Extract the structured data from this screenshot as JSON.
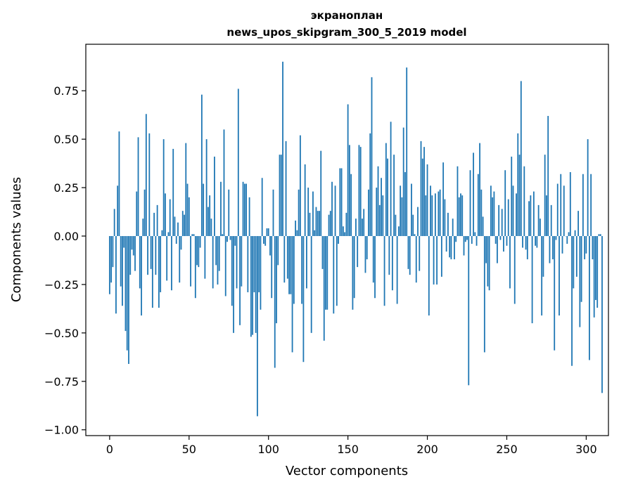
{
  "chart_data": {
    "type": "bar",
    "title_line1": "экраноплан",
    "title_line2": "news_upos_skipgram_300_5_2019 model",
    "xlabel": "Vector components",
    "ylabel": "Components values",
    "xlim": [
      -15,
      314
    ],
    "ylim": [
      -1.03,
      0.99
    ],
    "xticks": [
      0,
      50,
      100,
      150,
      200,
      250,
      300
    ],
    "yticks": [
      -1.0,
      -0.75,
      -0.5,
      -0.25,
      0.0,
      0.25,
      0.5,
      0.75
    ],
    "ytick_labels": [
      "−1.00",
      "−0.75",
      "−0.50",
      "−0.25",
      "0.00",
      "0.25",
      "0.50",
      "0.75"
    ],
    "bar_color": "#1f77b4",
    "grid": false,
    "legend": "none",
    "values": [
      -0.3,
      -0.24,
      -0.16,
      0.14,
      -0.4,
      0.26,
      0.54,
      -0.26,
      -0.36,
      -0.06,
      -0.49,
      -0.59,
      -0.66,
      -0.2,
      -0.07,
      -0.1,
      -0.18,
      0.23,
      0.51,
      -0.27,
      -0.41,
      0.09,
      0.24,
      0.63,
      -0.2,
      0.53,
      -0.17,
      -0.37,
      0.12,
      -0.2,
      0.16,
      -0.37,
      -0.29,
      0.03,
      0.5,
      0.22,
      -0.23,
      0.02,
      0.19,
      -0.28,
      0.45,
      0.1,
      -0.04,
      0.07,
      -0.24,
      -0.07,
      0.13,
      0.11,
      0.48,
      0.27,
      0.2,
      -0.26,
      0.01,
      0.01,
      -0.32,
      -0.15,
      -0.16,
      -0.06,
      0.73,
      0.27,
      -0.22,
      0.5,
      0.15,
      0.21,
      0.09,
      -0.27,
      0.41,
      -0.15,
      -0.25,
      -0.18,
      0.28,
      0.01,
      0.55,
      -0.31,
      -0.03,
      0.24,
      -0.02,
      -0.36,
      -0.5,
      -0.05,
      -0.27,
      0.76,
      -0.46,
      -0.26,
      0.28,
      0.27,
      0.27,
      -0.29,
      0.2,
      -0.52,
      -0.51,
      -0.29,
      -0.5,
      -0.93,
      -0.29,
      -0.38,
      0.3,
      -0.04,
      -0.05,
      0.04,
      0.04,
      -0.1,
      -0.32,
      0.24,
      -0.68,
      -0.45,
      -0.15,
      0.42,
      0.42,
      0.9,
      -0.24,
      0.49,
      -0.22,
      -0.3,
      -0.3,
      -0.6,
      -0.35,
      0.08,
      0.03,
      0.24,
      0.52,
      -0.35,
      -0.65,
      0.37,
      -0.27,
      0.25,
      0.12,
      -0.5,
      0.23,
      0.03,
      0.15,
      0.13,
      0.13,
      0.44,
      -0.17,
      -0.54,
      -0.38,
      -0.38,
      0.11,
      0.13,
      0.28,
      -0.4,
      0.26,
      -0.36,
      -0.04,
      0.35,
      0.35,
      0.05,
      0.02,
      0.12,
      0.68,
      0.47,
      0.32,
      -0.38,
      -0.32,
      0.09,
      -0.16,
      0.47,
      0.46,
      0.09,
      0.14,
      -0.19,
      -0.12,
      0.24,
      0.53,
      0.82,
      -0.24,
      -0.32,
      0.25,
      0.36,
      0.16,
      0.3,
      0.21,
      -0.36,
      0.48,
      0.4,
      -0.2,
      0.59,
      -0.28,
      0.42,
      0.11,
      -0.35,
      0.05,
      0.26,
      0.2,
      0.56,
      0.33,
      0.87,
      -0.17,
      -0.2,
      0.27,
      0.11,
      0.01,
      -0.24,
      0.15,
      -0.18,
      0.49,
      0.4,
      0.46,
      0.21,
      0.37,
      -0.41,
      0.26,
      0.21,
      -0.25,
      0.22,
      -0.25,
      0.23,
      0.24,
      -0.21,
      0.38,
      0.19,
      -0.08,
      0.12,
      -0.11,
      -0.12,
      0.09,
      -0.12,
      -0.03,
      0.36,
      0.2,
      0.22,
      0.21,
      -0.1,
      -0.03,
      -0.02,
      -0.77,
      0.34,
      -0.04,
      0.43,
      0.02,
      -0.05,
      0.32,
      0.48,
      0.24,
      0.1,
      -0.6,
      -0.14,
      -0.26,
      -0.28,
      0.26,
      0.2,
      0.23,
      -0.04,
      -0.14,
      0.16,
      -0.02,
      0.14,
      -0.08,
      0.34,
      -0.05,
      0.19,
      -0.27,
      0.41,
      0.26,
      -0.35,
      0.22,
      0.53,
      0.42,
      0.8,
      -0.06,
      0.36,
      -0.07,
      -0.12,
      0.18,
      0.21,
      -0.45,
      0.23,
      -0.05,
      -0.06,
      0.16,
      0.09,
      -0.41,
      -0.21,
      0.42,
      0.21,
      0.62,
      -0.14,
      0.16,
      -0.12,
      -0.59,
      -0.02,
      0.27,
      -0.41,
      0.32,
      -0.09,
      0.26,
      0.0,
      -0.04,
      0.02,
      0.33,
      -0.67,
      -0.27,
      0.03,
      -0.21,
      0.13,
      -0.47,
      -0.34,
      0.32,
      -0.12,
      -0.09,
      0.5,
      -0.64,
      0.32,
      -0.12,
      -0.42,
      -0.33,
      -0.37,
      0.01,
      0.01,
      -0.81
    ]
  }
}
